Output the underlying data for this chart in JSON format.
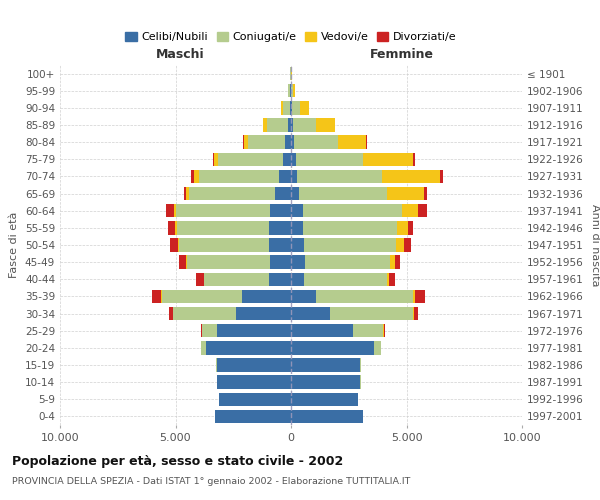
{
  "age_groups": [
    "0-4",
    "5-9",
    "10-14",
    "15-19",
    "20-24",
    "25-29",
    "30-34",
    "35-39",
    "40-44",
    "45-49",
    "50-54",
    "55-59",
    "60-64",
    "65-69",
    "70-74",
    "75-79",
    "80-84",
    "85-89",
    "90-94",
    "95-99",
    "100+"
  ],
  "birth_years": [
    "1997-2001",
    "1992-1996",
    "1987-1991",
    "1982-1986",
    "1977-1981",
    "1972-1976",
    "1967-1971",
    "1962-1966",
    "1957-1961",
    "1952-1956",
    "1947-1951",
    "1942-1946",
    "1937-1941",
    "1932-1936",
    "1927-1931",
    "1922-1926",
    "1917-1921",
    "1912-1916",
    "1907-1911",
    "1902-1906",
    "≤ 1901"
  ],
  "males": {
    "celibi": [
      3300,
      3100,
      3200,
      3200,
      3700,
      3200,
      2400,
      2100,
      950,
      900,
      950,
      950,
      900,
      700,
      500,
      350,
      250,
      150,
      50,
      30,
      10
    ],
    "coniugati": [
      5,
      5,
      10,
      30,
      200,
      650,
      2700,
      3500,
      2800,
      3600,
      3900,
      4000,
      4100,
      3700,
      3500,
      2800,
      1600,
      900,
      300,
      80,
      20
    ],
    "vedovi": [
      2,
      2,
      2,
      3,
      5,
      5,
      10,
      20,
      30,
      50,
      60,
      80,
      80,
      130,
      200,
      180,
      200,
      150,
      80,
      20,
      5
    ],
    "divorziati": [
      2,
      2,
      3,
      5,
      10,
      40,
      150,
      400,
      330,
      280,
      310,
      300,
      350,
      120,
      150,
      50,
      30,
      20,
      10,
      5,
      2
    ]
  },
  "females": {
    "nubili": [
      3100,
      2900,
      3000,
      3000,
      3600,
      2700,
      1700,
      1100,
      550,
      600,
      550,
      500,
      500,
      350,
      250,
      200,
      150,
      100,
      40,
      20,
      10
    ],
    "coniugate": [
      5,
      5,
      10,
      40,
      280,
      1300,
      3600,
      4200,
      3600,
      3700,
      4000,
      4100,
      4300,
      3800,
      3700,
      2900,
      1900,
      1000,
      350,
      80,
      10
    ],
    "vedove": [
      2,
      2,
      2,
      3,
      5,
      10,
      30,
      70,
      100,
      200,
      350,
      450,
      700,
      1600,
      2500,
      2200,
      1200,
      800,
      400,
      80,
      10
    ],
    "divorziate": [
      2,
      2,
      3,
      5,
      10,
      40,
      180,
      450,
      240,
      230,
      310,
      250,
      380,
      150,
      150,
      80,
      30,
      20,
      10,
      5,
      2
    ]
  },
  "colors": {
    "celibi": "#3A6EA5",
    "coniugati": "#B5CC8E",
    "vedovi": "#F5C518",
    "divorziati": "#CC2222"
  },
  "title": "Popolazione per età, sesso e stato civile - 2002",
  "subtitle": "PROVINCIA DELLA SPEZIA - Dati ISTAT 1° gennaio 2002 - Elaborazione TUTTITALIA.IT",
  "xlabel_left": "Maschi",
  "xlabel_right": "Femmine",
  "ylabel_left": "Fasce di età",
  "ylabel_right": "Anni di nascita",
  "xlim": 10000,
  "background_color": "#ffffff",
  "grid_color": "#cccccc",
  "legend_labels": [
    "Celibi/Nubili",
    "Coniugati/e",
    "Vedovi/e",
    "Divorziati/e"
  ]
}
